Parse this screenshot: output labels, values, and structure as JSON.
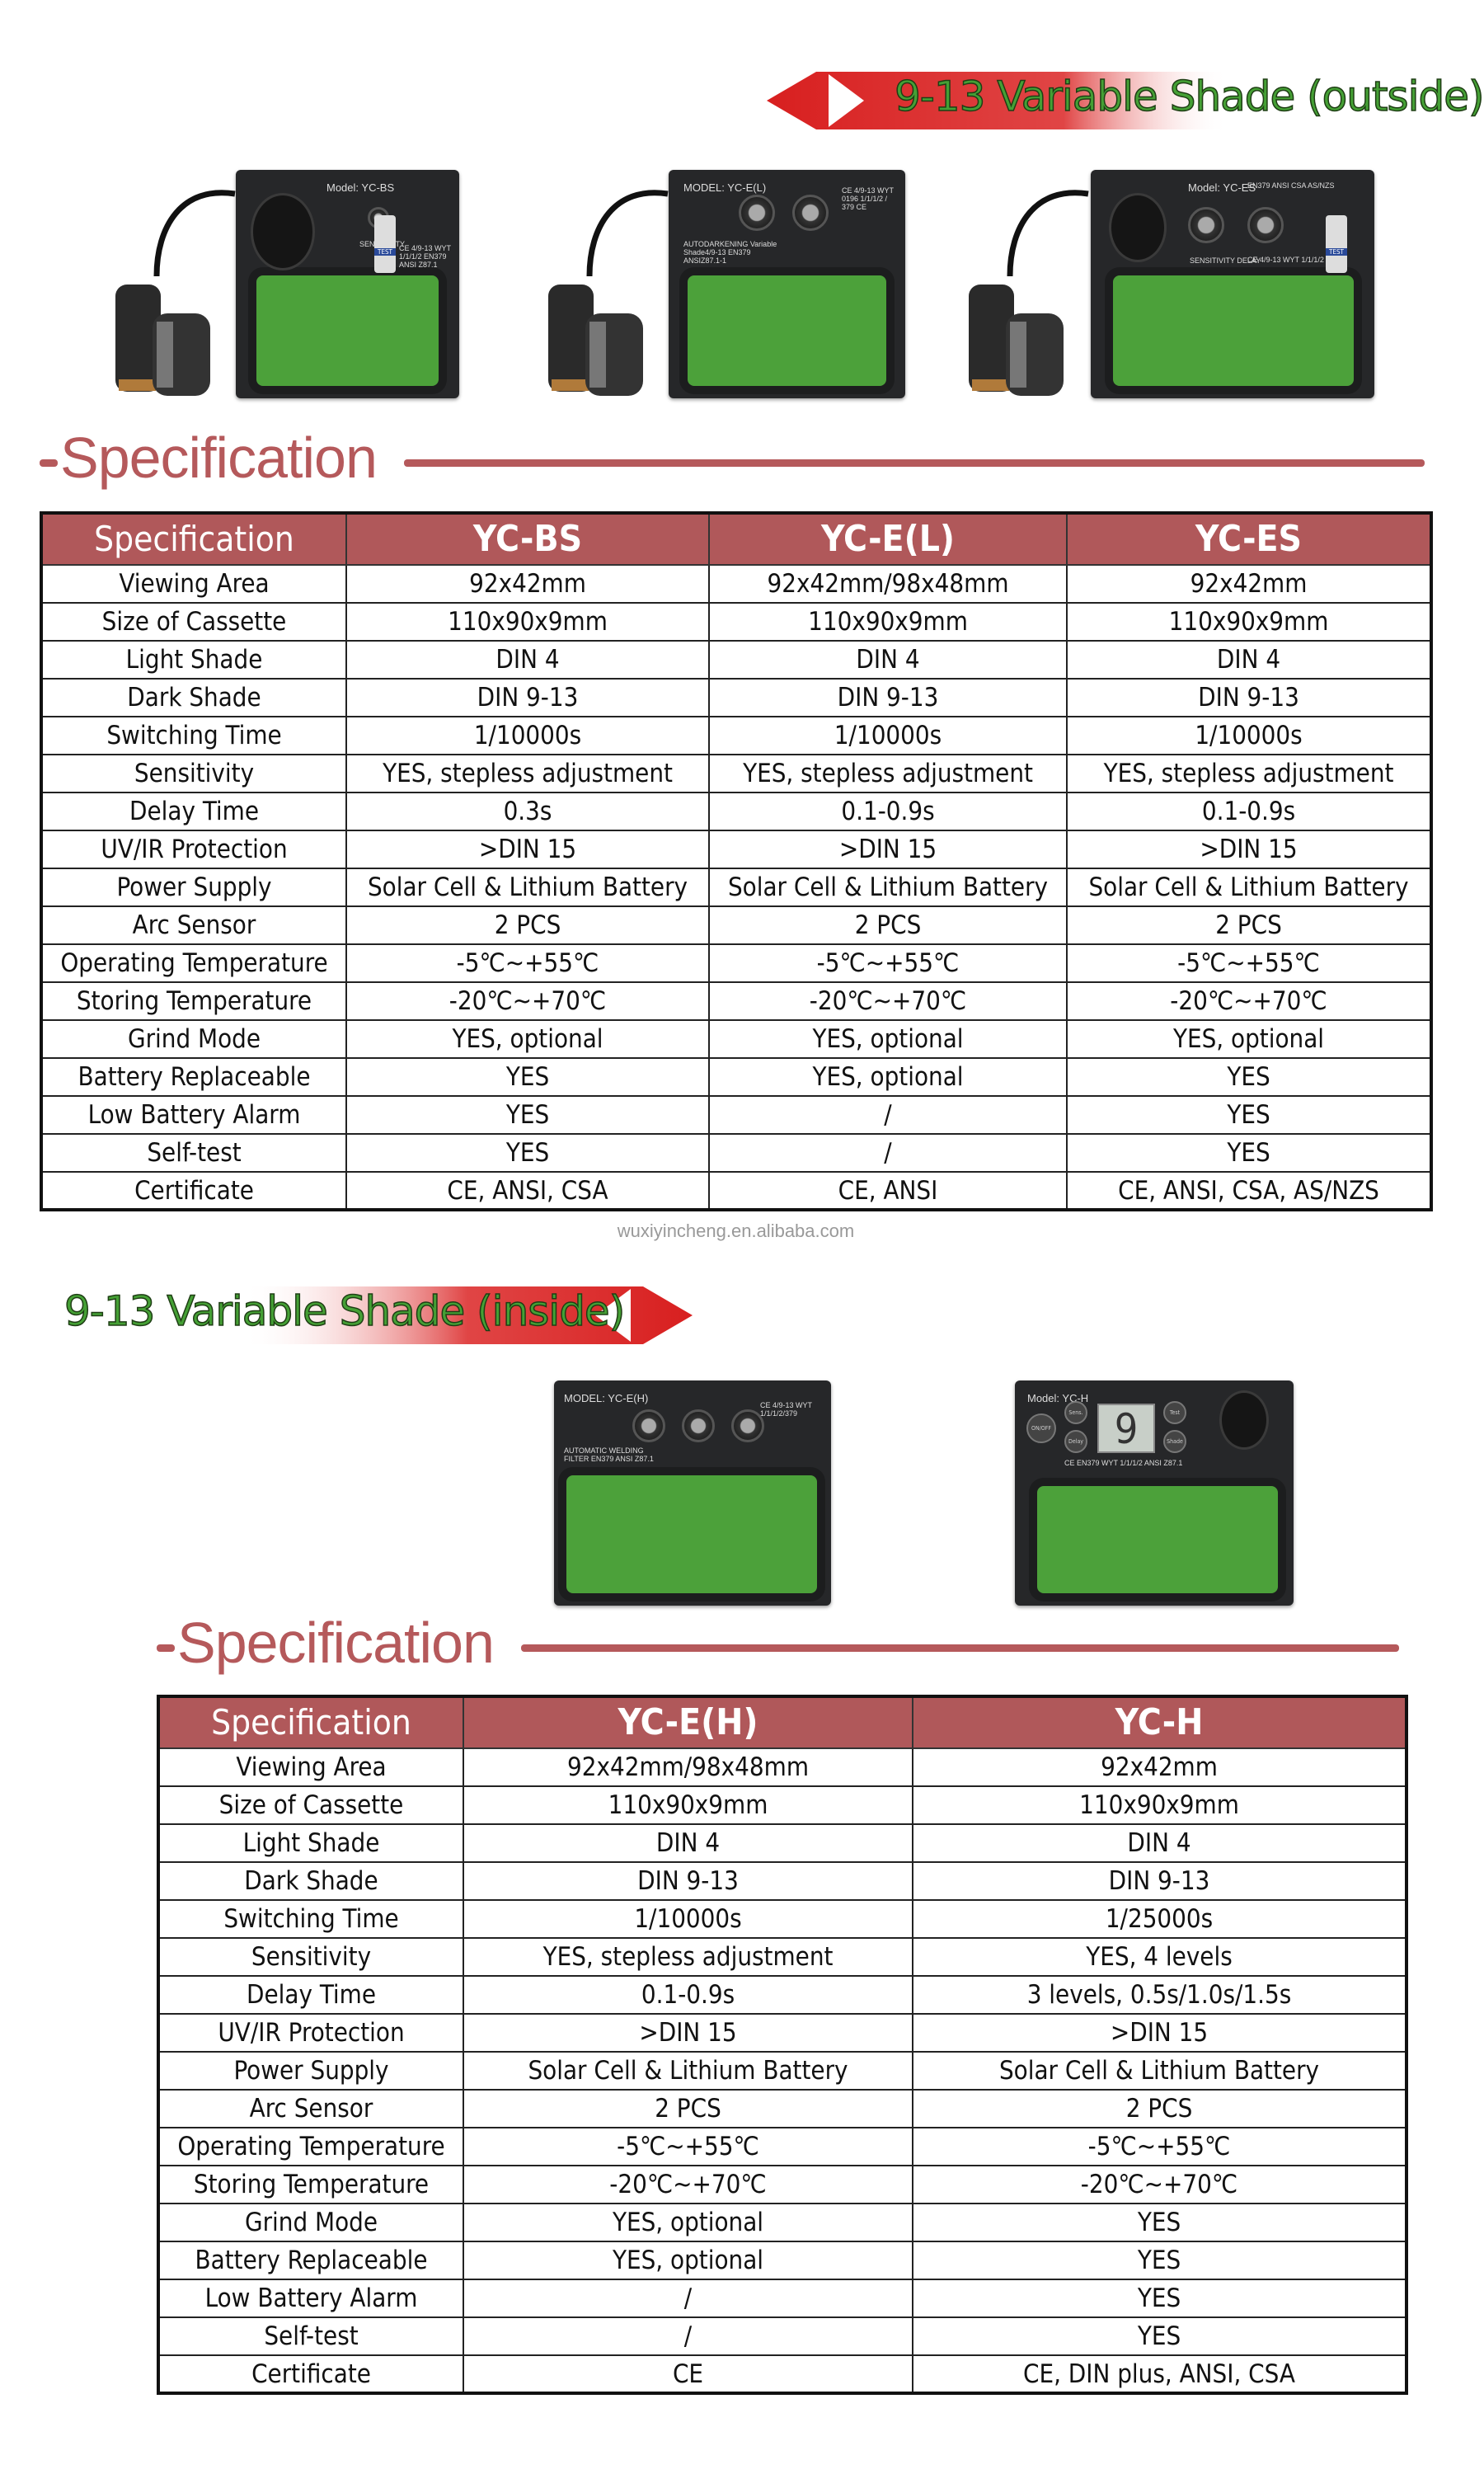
{
  "banners": {
    "outside": "9-13 Variable Shade (outside)",
    "inside": "9-13 Variable Shade (inside)"
  },
  "colors": {
    "accent": "#b0585a",
    "banner_red": "#d62020",
    "banner_text": "#45a035",
    "lens_green": "#4ca13a"
  },
  "devices": {
    "bs": {
      "model": "Model: YC-BS",
      "sub": "SENSITIVITY",
      "cert": "CE 4/9-13  WYT 1/1/1/2  EN379 ANSI Z87.1",
      "button": "TEST"
    },
    "el": {
      "model": "MODEL: YC-E(L)",
      "sub": "AUTODARKENING Variable Shade4/9-13 EN379 ANSIZ87.1-1",
      "cert": "CE 4/9-13 WYT 0196 1/1/1/2 / 379 CE"
    },
    "es": {
      "model": "Model: YC-ES",
      "sub": "SENSITIVITY    DELAY",
      "cert": "EN379 ANSI CSA AS/NZS",
      "cert2": "CE 4/9-13  WYT 1/1/1/2",
      "button": "TEST"
    },
    "eh": {
      "model": "MODEL: YC-E(H)",
      "sub": "AUTOMATIC WELDING FILTER EN379 ANSI Z87.1",
      "cert": "CE 4/9-13 WYT 1/1/1/2/379"
    },
    "h": {
      "model": "Model: YC-H",
      "cert": "CE EN379  WYT 1/1/1/2  ANSI Z87.1",
      "display": "9",
      "buttons": [
        "ON/OFF",
        "Sens.",
        "Delay",
        "Test",
        "Shade"
      ]
    }
  },
  "spec_title": "Specification",
  "watermark": "wuxiyincheng.en.alibaba.com",
  "table1": {
    "headers": [
      "Specification",
      "YC-BS",
      "YC-E(L)",
      "YC-ES"
    ],
    "rows": [
      [
        "Viewing Area",
        "92x42mm",
        "92x42mm/98x48mm",
        "92x42mm"
      ],
      [
        "Size of Cassette",
        "110x90x9mm",
        "110x90x9mm",
        "110x90x9mm"
      ],
      [
        "Light Shade",
        "DIN 4",
        "DIN 4",
        "DIN 4"
      ],
      [
        "Dark Shade",
        "DIN 9-13",
        "DIN 9-13",
        "DIN 9-13"
      ],
      [
        "Switching Time",
        "1/10000s",
        "1/10000s",
        "1/10000s"
      ],
      [
        "Sensitivity",
        "YES, stepless adjustment",
        "YES, stepless adjustment",
        "YES, stepless adjustment"
      ],
      [
        "Delay Time",
        "0.3s",
        "0.1-0.9s",
        "0.1-0.9s"
      ],
      [
        "UV/IR Protection",
        ">DIN 15",
        ">DIN 15",
        ">DIN 15"
      ],
      [
        "Power Supply",
        "Solar Cell & Lithium Battery",
        "Solar Cell & Lithium Battery",
        "Solar Cell & Lithium Battery"
      ],
      [
        "Arc Sensor",
        "2 PCS",
        "2 PCS",
        "2 PCS"
      ],
      [
        "Operating Temperature",
        "-5℃~+55℃",
        "-5℃~+55℃",
        "-5℃~+55℃"
      ],
      [
        "Storing Temperature",
        "-20℃~+70℃",
        "-20℃~+70℃",
        "-20℃~+70℃"
      ],
      [
        "Grind Mode",
        "YES, optional",
        "YES, optional",
        "YES, optional"
      ],
      [
        "Battery Replaceable",
        "YES",
        "YES, optional",
        "YES"
      ],
      [
        "Low Battery Alarm",
        "YES",
        "/",
        "YES"
      ],
      [
        "Self-test",
        "YES",
        "/",
        "YES"
      ],
      [
        "Certificate",
        "CE, ANSI, CSA",
        "CE, ANSI",
        "CE, ANSI, CSA, AS/NZS"
      ]
    ]
  },
  "table2": {
    "headers": [
      "Specification",
      "YC-E(H)",
      "YC-H"
    ],
    "rows": [
      [
        "Viewing Area",
        "92x42mm/98x48mm",
        "92x42mm"
      ],
      [
        "Size of Cassette",
        "110x90x9mm",
        "110x90x9mm"
      ],
      [
        "Light Shade",
        "DIN 4",
        "DIN 4"
      ],
      [
        "Dark Shade",
        "DIN 9-13",
        "DIN 9-13"
      ],
      [
        "Switching Time",
        "1/10000s",
        "1/25000s"
      ],
      [
        "Sensitivity",
        "YES, stepless adjustment",
        "YES, 4 levels"
      ],
      [
        "Delay Time",
        "0.1-0.9s",
        "3 levels, 0.5s/1.0s/1.5s"
      ],
      [
        "UV/IR Protection",
        ">DIN 15",
        ">DIN 15"
      ],
      [
        "Power Supply",
        "Solar Cell & Lithium Battery",
        "Solar Cell & Lithium Battery"
      ],
      [
        "Arc Sensor",
        "2 PCS",
        "2 PCS"
      ],
      [
        "Operating Temperature",
        "-5℃~+55℃",
        "-5℃~+55℃"
      ],
      [
        "Storing Temperature",
        "-20℃~+70℃",
        "-20℃~+70℃"
      ],
      [
        "Grind Mode",
        "YES, optional",
        "YES"
      ],
      [
        "Battery Replaceable",
        "YES, optional",
        "YES"
      ],
      [
        "Low Battery Alarm",
        "/",
        "YES"
      ],
      [
        "Self-test",
        "/",
        "YES"
      ],
      [
        "Certificate",
        "CE",
        "CE, DIN plus, ANSI, CSA"
      ]
    ]
  }
}
